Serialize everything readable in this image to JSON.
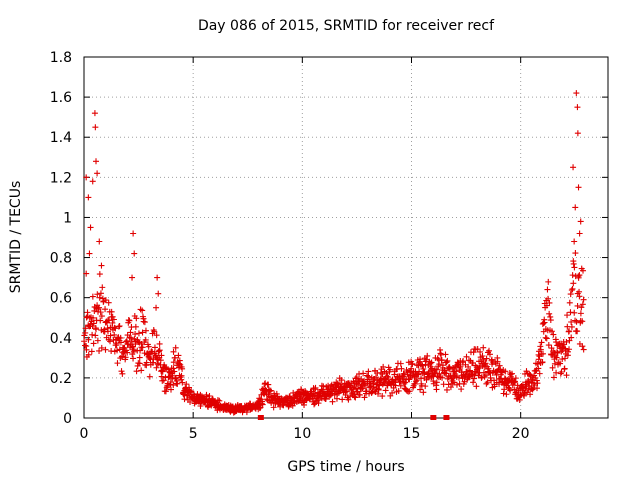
{
  "chart_data": {
    "type": "scatter",
    "title": "Day 086 of 2015, SRMTID for receiver recf",
    "xlabel": "GPS time / hours",
    "ylabel": "SRMTID / TECUs",
    "xlim": [
      0,
      24
    ],
    "ylim": [
      0,
      1.8
    ],
    "x_ticks": [
      0,
      5,
      10,
      15,
      20
    ],
    "x_tick_labels": [
      "0",
      "5",
      "10",
      "15",
      "20"
    ],
    "y_ticks": [
      0,
      0.2,
      0.4,
      0.6,
      0.8,
      1,
      1.2,
      1.4,
      1.6,
      1.8
    ],
    "y_tick_labels": [
      "0",
      "0.2",
      "0.4",
      "0.6",
      "0.8",
      "1",
      "1.2",
      "1.4",
      "1.6",
      "1.8"
    ],
    "grid": true,
    "marker": "plus",
    "color": "#e00000",
    "series": [
      {
        "name": "SRMTID",
        "profile": [
          [
            0.0,
            0.38
          ],
          [
            0.3,
            0.52
          ],
          [
            0.6,
            0.55
          ],
          [
            0.9,
            0.48
          ],
          [
            1.2,
            0.44
          ],
          [
            1.5,
            0.38
          ],
          [
            1.8,
            0.34
          ],
          [
            2.1,
            0.4
          ],
          [
            2.4,
            0.36
          ],
          [
            2.7,
            0.4
          ],
          [
            3.0,
            0.3
          ],
          [
            3.3,
            0.34
          ],
          [
            3.5,
            0.26
          ],
          [
            3.8,
            0.18
          ],
          [
            4.1,
            0.2
          ],
          [
            4.3,
            0.26
          ],
          [
            4.6,
            0.14
          ],
          [
            5.0,
            0.1
          ],
          [
            5.5,
            0.09
          ],
          [
            6.0,
            0.07
          ],
          [
            6.5,
            0.05
          ],
          [
            7.0,
            0.04
          ],
          [
            7.5,
            0.05
          ],
          [
            8.0,
            0.07
          ],
          [
            8.3,
            0.14
          ],
          [
            8.7,
            0.09
          ],
          [
            9.2,
            0.08
          ],
          [
            9.7,
            0.1
          ],
          [
            10.2,
            0.11
          ],
          [
            11.0,
            0.12
          ],
          [
            12.0,
            0.15
          ],
          [
            13.0,
            0.17
          ],
          [
            14.0,
            0.19
          ],
          [
            15.0,
            0.21
          ],
          [
            16.0,
            0.23
          ],
          [
            16.3,
            0.26
          ],
          [
            16.7,
            0.2
          ],
          [
            17.2,
            0.22
          ],
          [
            17.8,
            0.24
          ],
          [
            18.3,
            0.26
          ],
          [
            18.8,
            0.22
          ],
          [
            19.3,
            0.2
          ],
          [
            19.7,
            0.16
          ],
          [
            20.0,
            0.12
          ],
          [
            20.3,
            0.18
          ],
          [
            20.6,
            0.2
          ],
          [
            20.9,
            0.26
          ],
          [
            21.2,
            0.62
          ],
          [
            21.35,
            0.4
          ],
          [
            21.5,
            0.3
          ],
          [
            21.8,
            0.3
          ],
          [
            22.1,
            0.35
          ],
          [
            22.3,
            0.5
          ],
          [
            22.5,
            0.68
          ],
          [
            22.7,
            0.55
          ],
          [
            22.9,
            0.52
          ]
        ],
        "outliers": [
          [
            0.1,
            1.2
          ],
          [
            0.2,
            1.1
          ],
          [
            0.3,
            0.95
          ],
          [
            0.4,
            1.18
          ],
          [
            0.5,
            1.52
          ],
          [
            0.52,
            1.45
          ],
          [
            0.55,
            1.28
          ],
          [
            0.6,
            1.22
          ],
          [
            0.7,
            0.88
          ],
          [
            0.8,
            0.76
          ],
          [
            2.25,
            0.92
          ],
          [
            2.3,
            0.82
          ],
          [
            3.35,
            0.7
          ],
          [
            3.4,
            0.62
          ],
          [
            22.4,
            1.25
          ],
          [
            22.5,
            1.05
          ],
          [
            22.55,
            1.62
          ],
          [
            22.6,
            1.55
          ],
          [
            22.62,
            1.42
          ],
          [
            22.7,
            0.92
          ],
          [
            0.1,
            0.72
          ],
          [
            0.25,
            0.82
          ],
          [
            2.2,
            0.7
          ],
          [
            3.3,
            0.55
          ],
          [
            22.45,
            0.88
          ],
          [
            22.65,
            1.15
          ],
          [
            22.75,
            0.98
          ],
          [
            4.2,
            0.35
          ],
          [
            4.1,
            0.33
          ]
        ],
        "floor_markers": [
          8.1,
          16.0,
          16.6
        ]
      }
    ]
  }
}
